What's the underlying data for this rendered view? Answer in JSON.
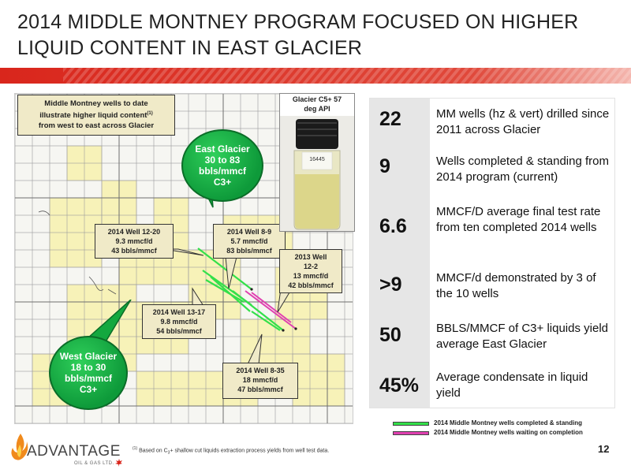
{
  "title": {
    "line1": "2014 MIDDLE MONTNEY PROGRAM FOCUSED ON HIGHER",
    "line2": "LIQUID CONTENT IN EAST GLACIER"
  },
  "map": {
    "note_lines": [
      "Middle Montney wells to date",
      "illustrate higher liquid content",
      "(1)",
      "from west to east across Glacier"
    ],
    "east_bubble": [
      "East Glacier",
      "30 to 83",
      "bbls/mmcf",
      "C3+"
    ],
    "west_bubble": [
      "West Glacier",
      "18 to 30",
      "bbls/mmcf",
      "C3+"
    ],
    "bottle_caption": [
      "Glacier C5+ 57",
      "deg API"
    ],
    "bottle_label": "16445",
    "callouts": [
      {
        "lines": [
          "2014 Well 12-20",
          "9.3 mmcf/d",
          "43 bbls/mmcf"
        ]
      },
      {
        "lines": [
          "2014 Well 8-9",
          "5.7 mmcf/d",
          "83 bbls/mmcf"
        ]
      },
      {
        "lines": [
          "2013 Well",
          "12-2",
          "13 mmcf/d",
          "42 bbls/mmcf"
        ]
      },
      {
        "lines": [
          "2014 Well 13-17",
          "9.8 mmcf/d",
          "54 bbls/mmcf"
        ]
      },
      {
        "lines": [
          "2014 Well 8-35",
          "18 mmcf/d",
          "47 bbls/mmcf"
        ]
      }
    ]
  },
  "stats": [
    {
      "num": "22",
      "text": "MM wells (hz & vert) drilled since 2011 across Glacier"
    },
    {
      "num": "9",
      "text": "Wells completed & standing from 2014 program (current)"
    },
    {
      "num": "6.6",
      "text": "MMCF/D average final test rate from ten completed 2014 wells"
    },
    {
      "num": ">9",
      "text": "MMCF/d demonstrated by 3 of the 10 wells"
    },
    {
      "num": "50",
      "text": "BBLS/MMCF of C3+ liquids yield average East Glacier"
    },
    {
      "num": "45%",
      "text": "Average condensate in liquid yield"
    }
  ],
  "legend": [
    {
      "label": "2014 Middle Montney wells completed & standing",
      "color": "#33e04a"
    },
    {
      "label": "2014 Middle Montney wells waiting on completion",
      "color": "#e040b0"
    }
  ],
  "footnote": {
    "marker": "(1)",
    "text": "Based on C",
    "sub": "3",
    "rest": "+ shallow cut liquids extraction process yields from well test data."
  },
  "page_number": "12",
  "logo": {
    "word": "ADVANTAGE",
    "sub": "OIL & GAS LTD."
  },
  "colors": {
    "banner_red": "#d9261c",
    "bubble_green": "#14a83f",
    "well_green": "#33e04a",
    "well_pink": "#e040b0"
  }
}
